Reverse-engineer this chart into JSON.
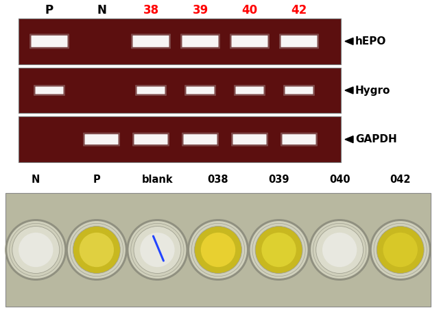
{
  "bg_color": "#ffffff",
  "pcr_bg": "#5c0f0f",
  "gel_labels": [
    "hEPO",
    "Hygro",
    "GAPDH"
  ],
  "lane_labels_pcr": [
    "P",
    "N",
    "38",
    "39",
    "40",
    "42"
  ],
  "lane_label_colors": [
    "black",
    "black",
    "red",
    "red",
    "red",
    "red"
  ],
  "hEPO_bands": [
    1,
    0,
    1,
    1,
    1,
    1
  ],
  "Hygro_bands": [
    1,
    0,
    1,
    1,
    1,
    1
  ],
  "GAPDH_bands": [
    0,
    1,
    1,
    1,
    1,
    1
  ],
  "elisa_labels": [
    "N",
    "P",
    "blank",
    "038",
    "039",
    "040",
    "042"
  ],
  "well_colors": [
    "#dcdccc",
    "#c8b820",
    "#dcdccc",
    "#c8b820",
    "#c8b820",
    "#dcdccc",
    "#c8b820"
  ],
  "well_inner_colors": [
    "#e8e8e0",
    "#e0d040",
    "#e8e8e0",
    "#e8d030",
    "#ddd030",
    "#e8e8e0",
    "#d8c828"
  ]
}
